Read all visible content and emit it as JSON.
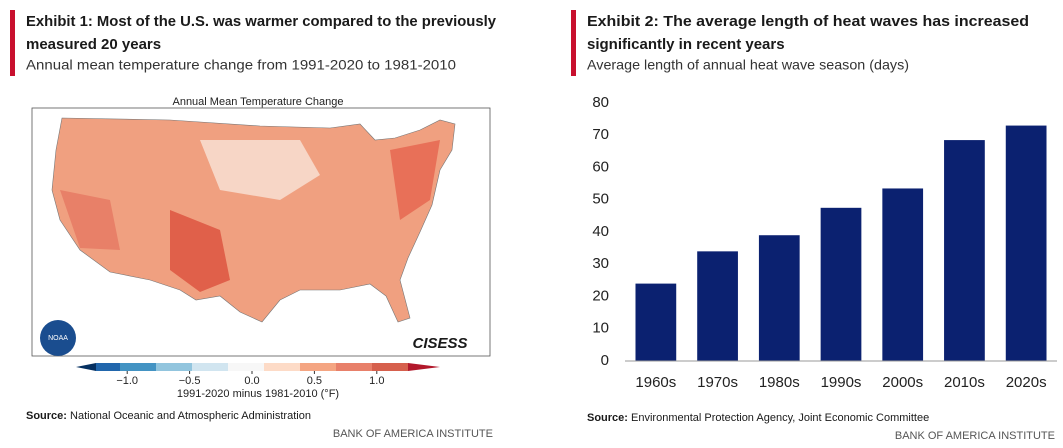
{
  "exhibit1": {
    "title_lines": [
      "Exhibit 1: Most of the U.S. was warmer compared to the previously",
      "measured 20 years"
    ],
    "subtitle": "Annual mean temperature change from 1991-2020 to 1981-2010",
    "map": {
      "title": "Annual Mean Temperature Change",
      "logo_left": "NOAA",
      "logo_right": "CISESS",
      "colorbar_label": "1991-2020 minus 1981-2010 (°F)",
      "colorbar_lim": [
        -1.25,
        1.25
      ],
      "colorbar_ticks": [
        {
          "value": -1,
          "label": "−1.0"
        },
        {
          "value": -0.5,
          "label": "−0.5"
        },
        {
          "value": 0,
          "label": "0.0"
        },
        {
          "value": 0.5,
          "label": "0.5"
        },
        {
          "value": 1,
          "label": "1.0"
        }
      ]
    },
    "source_label": "Source:",
    "source": "National Oceanic and Atmospheric Administration",
    "footer": "BANK OF AMERICA INSTITUTE"
  },
  "chart_data": {
    "type": "bar",
    "title_lines": [
      "Exhibit 2: The average length of heat waves has increased",
      "significantly in recent years"
    ],
    "subtitle": "Average length of annual heat wave season (days)",
    "categories": [
      "1960s",
      "1970s",
      "1980s",
      "1990s",
      "2000s",
      "2010s",
      "2020s"
    ],
    "values": [
      24,
      34,
      39,
      47.5,
      53.5,
      68.5,
      73
    ],
    "color": "#0b2170",
    "ylim": [
      0,
      80
    ],
    "yticks": [
      0,
      10,
      20,
      30,
      40,
      50,
      60,
      70,
      80
    ],
    "grid": false,
    "source_label": "Source:",
    "source": "Environmental Protection Agency, Joint Economic Committee",
    "footer": "BANK OF AMERICA INSTITUTE"
  }
}
